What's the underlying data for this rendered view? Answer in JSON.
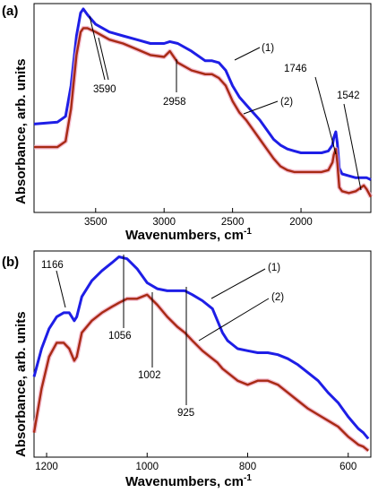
{
  "chart_data": [
    {
      "type": "line",
      "panel_label": "(a)",
      "xlabel": "Wavenumbers, cm",
      "xlabel_sup": "-1",
      "ylabel": "Absorbance, arb. units",
      "xlim": [
        3950,
        1490
      ],
      "x_reversed": true,
      "ylim": [
        0,
        1
      ],
      "y_ticks_labeled": false,
      "x_ticks": [
        3500,
        3000,
        2500,
        2000
      ],
      "x_tick_labels": [
        "3500",
        "3000",
        "2500",
        "2000"
      ],
      "series": [
        {
          "name": "(1)",
          "color": "#1e1ee6",
          "x": [
            3950,
            3780,
            3720,
            3680,
            3640,
            3610,
            3590,
            3560,
            3500,
            3400,
            3300,
            3200,
            3100,
            3000,
            2958,
            2900,
            2800,
            2700,
            2650,
            2600,
            2550,
            2500,
            2450,
            2400,
            2350,
            2300,
            2250,
            2200,
            2150,
            2100,
            2050,
            2000,
            1950,
            1900,
            1850,
            1800,
            1770,
            1760,
            1746,
            1735,
            1720,
            1700,
            1650,
            1600,
            1560,
            1542,
            1520,
            1490
          ],
          "y": [
            0.4,
            0.41,
            0.44,
            0.6,
            0.86,
            0.98,
            1.0,
            0.97,
            0.92,
            0.88,
            0.86,
            0.84,
            0.82,
            0.82,
            0.83,
            0.82,
            0.78,
            0.73,
            0.73,
            0.72,
            0.68,
            0.6,
            0.54,
            0.5,
            0.46,
            0.42,
            0.37,
            0.32,
            0.29,
            0.27,
            0.26,
            0.25,
            0.25,
            0.25,
            0.25,
            0.26,
            0.29,
            0.33,
            0.36,
            0.3,
            0.17,
            0.14,
            0.13,
            0.12,
            0.12,
            0.12,
            0.12,
            0.11
          ]
        },
        {
          "name": "(2)",
          "color": "#a82a14",
          "x": [
            3950,
            3780,
            3720,
            3680,
            3640,
            3610,
            3590,
            3560,
            3500,
            3400,
            3300,
            3200,
            3100,
            3000,
            2958,
            2900,
            2800,
            2700,
            2650,
            2600,
            2550,
            2500,
            2450,
            2400,
            2350,
            2300,
            2250,
            2200,
            2150,
            2100,
            2050,
            2000,
            1950,
            1900,
            1850,
            1800,
            1770,
            1760,
            1746,
            1735,
            1720,
            1700,
            1650,
            1600,
            1560,
            1542,
            1520,
            1490
          ],
          "y": [
            0.28,
            0.28,
            0.31,
            0.48,
            0.76,
            0.88,
            0.9,
            0.9,
            0.88,
            0.84,
            0.82,
            0.79,
            0.76,
            0.75,
            0.78,
            0.72,
            0.68,
            0.66,
            0.66,
            0.64,
            0.6,
            0.52,
            0.46,
            0.42,
            0.37,
            0.32,
            0.27,
            0.22,
            0.18,
            0.16,
            0.15,
            0.15,
            0.15,
            0.15,
            0.15,
            0.16,
            0.2,
            0.24,
            0.27,
            0.2,
            0.07,
            0.05,
            0.04,
            0.05,
            0.07,
            0.08,
            0.06,
            0.02
          ]
        }
      ],
      "annotations": [
        {
          "text": "3590",
          "x": 3590
        },
        {
          "text": "2958",
          "x": 2958
        },
        {
          "text": "1746",
          "x": 1746
        },
        {
          "text": "1542",
          "x": 1542
        },
        {
          "text": "(1)",
          "series": "(1)"
        },
        {
          "text": "(2)",
          "series": "(2)"
        }
      ]
    },
    {
      "type": "line",
      "panel_label": "(b)",
      "xlabel": "Wavenumbers, cm",
      "xlabel_sup": "-1",
      "ylabel": "Absorbance, arb. units",
      "xlim": [
        1225,
        555
      ],
      "x_reversed": true,
      "ylim": [
        0,
        1
      ],
      "y_ticks_labeled": false,
      "x_ticks": [
        1200,
        1000,
        800,
        600
      ],
      "x_tick_labels": [
        "1200",
        "1000",
        "800",
        "600"
      ],
      "series": [
        {
          "name": "(1)",
          "color": "#1e1ee6",
          "x": [
            1225,
            1210,
            1195,
            1180,
            1166,
            1155,
            1145,
            1140,
            1130,
            1110,
            1090,
            1070,
            1056,
            1040,
            1020,
            1000,
            980,
            960,
            940,
            925,
            910,
            890,
            870,
            860,
            850,
            840,
            820,
            800,
            780,
            760,
            740,
            720,
            700,
            680,
            660,
            640,
            620,
            600,
            590,
            580,
            570,
            560
          ],
          "y": [
            0.38,
            0.52,
            0.62,
            0.68,
            0.7,
            0.7,
            0.66,
            0.68,
            0.78,
            0.86,
            0.91,
            0.95,
            0.98,
            0.97,
            0.92,
            0.85,
            0.82,
            0.81,
            0.81,
            0.81,
            0.79,
            0.76,
            0.72,
            0.66,
            0.6,
            0.56,
            0.52,
            0.51,
            0.5,
            0.5,
            0.49,
            0.47,
            0.44,
            0.4,
            0.36,
            0.3,
            0.25,
            0.18,
            0.15,
            0.12,
            0.1,
            0.07
          ]
        },
        {
          "name": "(2)",
          "color": "#a82a14",
          "x": [
            1225,
            1210,
            1195,
            1180,
            1166,
            1155,
            1145,
            1140,
            1130,
            1110,
            1090,
            1070,
            1056,
            1040,
            1020,
            1000,
            980,
            960,
            940,
            925,
            910,
            890,
            870,
            860,
            850,
            840,
            820,
            800,
            780,
            760,
            740,
            720,
            700,
            680,
            660,
            640,
            620,
            600,
            590,
            580,
            570,
            560
          ],
          "y": [
            0.1,
            0.32,
            0.48,
            0.55,
            0.55,
            0.52,
            0.46,
            0.48,
            0.6,
            0.66,
            0.7,
            0.73,
            0.75,
            0.77,
            0.77,
            0.79,
            0.74,
            0.68,
            0.63,
            0.6,
            0.56,
            0.51,
            0.47,
            0.45,
            0.42,
            0.4,
            0.36,
            0.34,
            0.36,
            0.36,
            0.34,
            0.3,
            0.26,
            0.22,
            0.19,
            0.16,
            0.13,
            0.08,
            0.06,
            0.04,
            0.03,
            0.01
          ]
        }
      ],
      "annotations": [
        {
          "text": "1166",
          "x": 1166
        },
        {
          "text": "1056",
          "x": 1056
        },
        {
          "text": "1002",
          "x": 1002
        },
        {
          "text": "925",
          "x": 925
        },
        {
          "text": "(1)",
          "series": "(1)"
        },
        {
          "text": "(2)",
          "series": "(2)"
        }
      ]
    }
  ]
}
